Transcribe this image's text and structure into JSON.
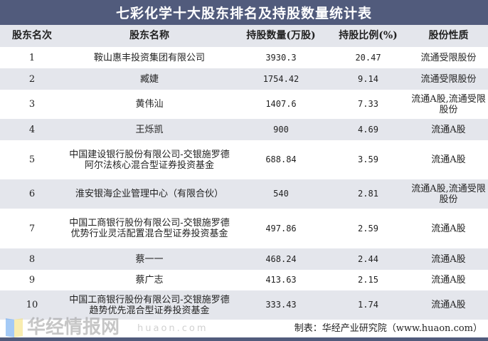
{
  "title": "七彩化学十大股东排名及持股数量统计表",
  "headers": [
    "股东名次",
    "股东名称",
    "持股数量(万股)",
    "持股比例(%)",
    "股份性质"
  ],
  "rows": [
    [
      "1",
      "鞍山惠丰投资集团有限公司",
      "3930.3",
      "20.47",
      "流通受限股份"
    ],
    [
      "2",
      "臧婕",
      "1754.42",
      "9.14",
      "流通受限股份"
    ],
    [
      "3",
      "黄伟汕",
      "1407.6",
      "7.33",
      "流通A股,流通受限股份"
    ],
    [
      "4",
      "王烁凯",
      "900",
      "4.69",
      "流通A股"
    ],
    [
      "5",
      "中国建设银行股份有限公司-交银施罗德阿尔法核心混合型证券投资基金",
      "688.84",
      "3.59",
      "流通A股"
    ],
    [
      "6",
      "淮安银海企业管理中心（有限合伙）",
      "540",
      "2.81",
      "流通A股,流通受限股份"
    ],
    [
      "7",
      "中国工商银行股份有限公司-交银施罗德优势行业灵活配置混合型证券投资基金",
      "497.86",
      "2.59",
      "流通A股"
    ],
    [
      "8",
      "蔡一一",
      "468.24",
      "2.44",
      "流通A股"
    ],
    [
      "9",
      "蔡广志",
      "413.63",
      "2.15",
      "流通A股"
    ],
    [
      "10",
      "中国工商银行股份有限公司-交银施罗德趋势优先混合型证券投资基金",
      "333.43",
      "1.74",
      "流通A股"
    ]
  ],
  "footer": "制表：华经产业研究院（www.huaon.com）",
  "watermark": {
    "text": "华经情报网",
    "url": "huaon.com"
  },
  "colors": {
    "title_bg": "#515b7c",
    "stripe": "#e4e6ec"
  }
}
